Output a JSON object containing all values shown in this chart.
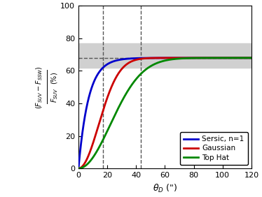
{
  "title": "",
  "xlabel": "$\\theta_{D}$ (\")",
  "xlim": [
    0,
    120
  ],
  "ylim": [
    0,
    100
  ],
  "xticks": [
    0,
    20,
    40,
    60,
    80,
    100,
    120
  ],
  "yticks": [
    0,
    20,
    40,
    60,
    80,
    100
  ],
  "vline1": 17,
  "vline2": 43,
  "hline": 68,
  "hband_low": 62,
  "hband_high": 77,
  "asymptote": 68.0,
  "gaussian_color": "#cc0000",
  "sersic_color": "#0000cc",
  "tophat_color": "#008800",
  "vline_color": "#555555",
  "hline_color": "#555555",
  "band_color": "#d0d0d0",
  "legend_loc": "lower right",
  "figsize": [
    3.74,
    2.82
  ],
  "dpi": 100,
  "sigma_gauss": 14.0,
  "sigma_sersic": 7.0,
  "sigma_tophat": 22.0
}
